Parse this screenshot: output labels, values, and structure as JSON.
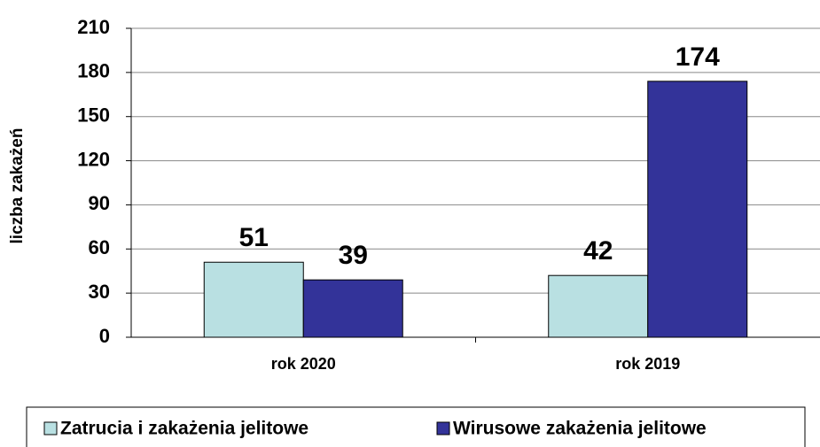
{
  "chart_data": {
    "type": "bar",
    "ylabel": "liczba zakażeń",
    "categories": [
      "rok 2020",
      "rok 2019"
    ],
    "series": [
      {
        "name": "Zatrucia i zakażenia jelitowe",
        "color": "#b9e0e2",
        "values": [
          51,
          42
        ]
      },
      {
        "name": "Wirusowe zakażenia jelitowe",
        "color": "#333399",
        "values": [
          39,
          174
        ]
      }
    ],
    "ylim": [
      0,
      210
    ],
    "yticks": [
      0,
      30,
      60,
      90,
      120,
      150,
      180,
      210
    ],
    "grid": true,
    "legend": "bottom"
  }
}
